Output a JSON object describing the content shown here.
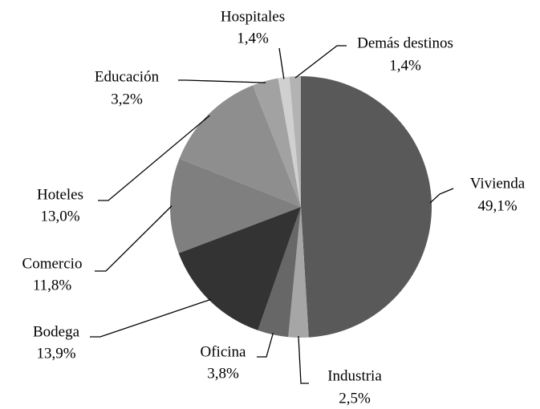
{
  "chart_data": {
    "type": "pie",
    "categories": [
      "Vivienda",
      "Industria",
      "Oficina",
      "Bodega",
      "Comercio",
      "Hoteles",
      "Educación",
      "Hospitales",
      "Demás destinos"
    ],
    "values": [
      49.1,
      2.5,
      3.8,
      13.9,
      11.8,
      13.0,
      3.2,
      1.4,
      1.4
    ],
    "value_labels": [
      "49,1%",
      "2,5%",
      "3,8%",
      "13,9%",
      "11,8%",
      "13,0%",
      "3,2%",
      "1,4%",
      "1,4%"
    ],
    "colors": [
      "#595959",
      "#a6a6a6",
      "#676767",
      "#333333",
      "#7f7f7f",
      "#8e8e8e",
      "#a2a2a2",
      "#d0d0d0",
      "#b3b3b3"
    ]
  }
}
